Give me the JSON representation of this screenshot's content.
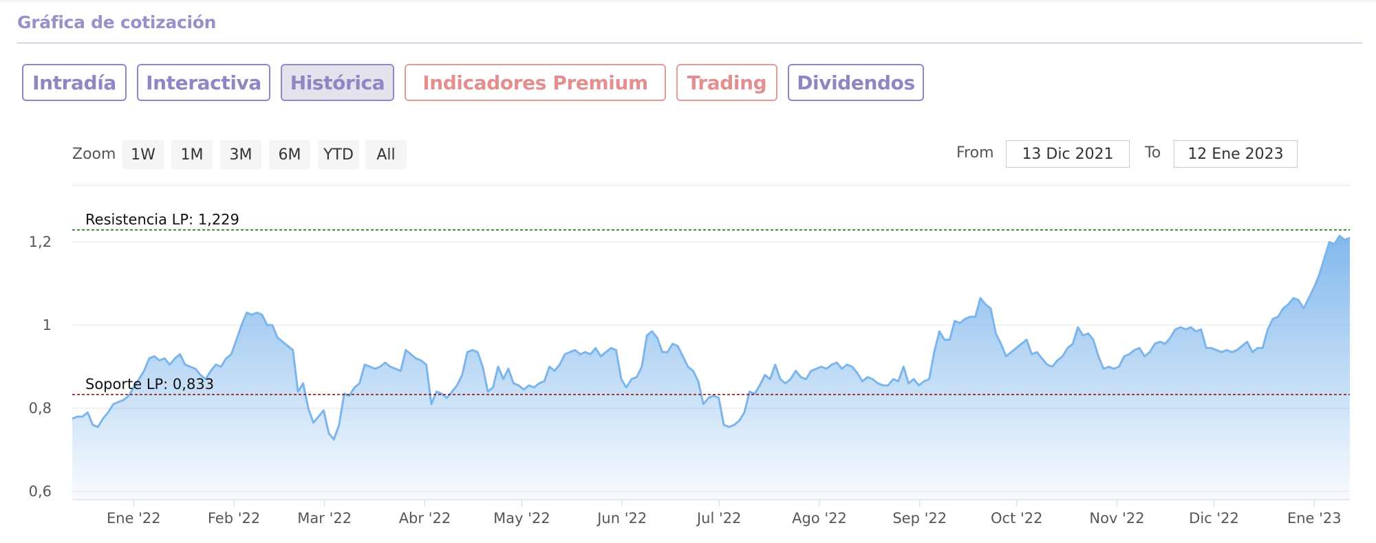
{
  "section": {
    "title": "Gráfica de cotización"
  },
  "tabs": [
    {
      "label": "Intradía",
      "active": false,
      "premium": false
    },
    {
      "label": "Interactiva",
      "active": false,
      "premium": false
    },
    {
      "label": "Histórica",
      "active": true,
      "premium": false
    },
    {
      "label": "Indicadores Premium",
      "active": false,
      "premium": true
    },
    {
      "label": "Trading",
      "active": false,
      "premium": true
    },
    {
      "label": "Dividendos",
      "active": false,
      "premium": false
    }
  ],
  "range_selector": {
    "zoom_label": "Zoom",
    "buttons": [
      "1W",
      "1M",
      "3M",
      "6M",
      "YTD",
      "All"
    ],
    "from_label": "From",
    "from_value": "13 Dic 2021",
    "to_label": "To",
    "to_value": "12 Ene 2023"
  },
  "colors": {
    "accent": "#8f86c3",
    "premium": "#e38f8f",
    "line": "#7cb5ec",
    "resistance": "#006400",
    "support": "#8b0000"
  },
  "chart_data": {
    "type": "area",
    "x_start": "13 Dic 2021",
    "x_end": "12 Ene 2023",
    "x_ticks": [
      "Ene '22",
      "Feb '22",
      "Mar '22",
      "Abr '22",
      "May '22",
      "Jun '22",
      "Jul '22",
      "Ago '22",
      "Sep '22",
      "Oct '22",
      "Nov '22",
      "Dic '22",
      "Ene '23"
    ],
    "y_ticks": [
      "0,6",
      "0,8",
      "1",
      "1,2"
    ],
    "ylim": [
      0.58,
      1.22
    ],
    "plot_lines": [
      {
        "label": "Resistencia LP: 1,229",
        "value": 1.229,
        "color": "#006400"
      },
      {
        "label": "Soporte LP: 0,833",
        "value": 0.833,
        "color": "#8b0000"
      }
    ],
    "series": [
      {
        "values": [
          0.775,
          0.78,
          0.78,
          0.79,
          0.76,
          0.755,
          0.775,
          0.79,
          0.81,
          0.815,
          0.82,
          0.83,
          0.85,
          0.87,
          0.89,
          0.92,
          0.925,
          0.915,
          0.92,
          0.905,
          0.92,
          0.93,
          0.905,
          0.9,
          0.895,
          0.88,
          0.87,
          0.89,
          0.905,
          0.9,
          0.92,
          0.93,
          0.965,
          1.0,
          1.03,
          1.025,
          1.03,
          1.025,
          1.0,
          1.0,
          0.97,
          0.96,
          0.95,
          0.94,
          0.84,
          0.86,
          0.8,
          0.765,
          0.78,
          0.795,
          0.74,
          0.725,
          0.76,
          0.835,
          0.83,
          0.85,
          0.86,
          0.905,
          0.9,
          0.895,
          0.9,
          0.91,
          0.9,
          0.895,
          0.89,
          0.94,
          0.93,
          0.92,
          0.915,
          0.905,
          0.81,
          0.84,
          0.835,
          0.825,
          0.84,
          0.855,
          0.88,
          0.935,
          0.94,
          0.935,
          0.9,
          0.84,
          0.85,
          0.9,
          0.87,
          0.895,
          0.86,
          0.855,
          0.845,
          0.855,
          0.85,
          0.86,
          0.865,
          0.9,
          0.89,
          0.905,
          0.93,
          0.935,
          0.94,
          0.93,
          0.935,
          0.93,
          0.945,
          0.925,
          0.935,
          0.945,
          0.94,
          0.87,
          0.85,
          0.87,
          0.875,
          0.9,
          0.975,
          0.985,
          0.97,
          0.935,
          0.935,
          0.955,
          0.95,
          0.925,
          0.9,
          0.89,
          0.865,
          0.81,
          0.825,
          0.83,
          0.825,
          0.76,
          0.755,
          0.76,
          0.77,
          0.79,
          0.84,
          0.835,
          0.855,
          0.88,
          0.87,
          0.905,
          0.87,
          0.86,
          0.87,
          0.89,
          0.875,
          0.87,
          0.89,
          0.895,
          0.9,
          0.895,
          0.905,
          0.91,
          0.895,
          0.905,
          0.9,
          0.885,
          0.865,
          0.875,
          0.87,
          0.86,
          0.855,
          0.855,
          0.87,
          0.865,
          0.9,
          0.86,
          0.87,
          0.855,
          0.865,
          0.87,
          0.935,
          0.985,
          0.965,
          0.965,
          1.01,
          1.005,
          1.015,
          1.02,
          1.02,
          1.065,
          1.05,
          1.04,
          0.98,
          0.955,
          0.925,
          0.935,
          0.945,
          0.955,
          0.965,
          0.93,
          0.935,
          0.92,
          0.905,
          0.9,
          0.915,
          0.925,
          0.945,
          0.955,
          0.995,
          0.975,
          0.98,
          0.965,
          0.925,
          0.895,
          0.9,
          0.895,
          0.9,
          0.925,
          0.93,
          0.94,
          0.945,
          0.925,
          0.935,
          0.955,
          0.96,
          0.955,
          0.97,
          0.99,
          0.995,
          0.99,
          0.995,
          0.985,
          0.99,
          0.945,
          0.945,
          0.94,
          0.935,
          0.94,
          0.935,
          0.94,
          0.95,
          0.96,
          0.935,
          0.945,
          0.945,
          0.99,
          1.015,
          1.02,
          1.04,
          1.05,
          1.065,
          1.06,
          1.04,
          1.065,
          1.09,
          1.12,
          1.16,
          1.2,
          1.195,
          1.215,
          1.205,
          1.21
        ]
      }
    ]
  }
}
